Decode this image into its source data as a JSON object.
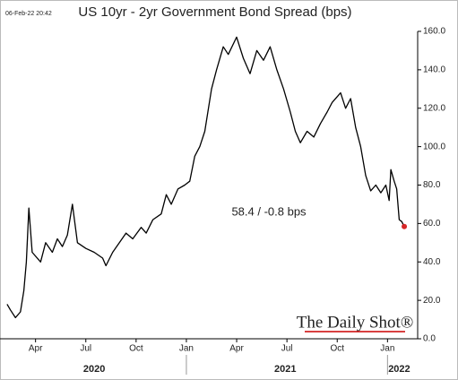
{
  "chart_data": {
    "type": "line",
    "title": "US 10yr - 2yr Government Bond Spread (bps)",
    "timestamp": "06-Feb-22 20:42",
    "annotation": "58.4  /  -0.8 bps",
    "source": "The Daily Shot®",
    "xlim": [
      1.2,
      25.8
    ],
    "xticks": [
      {
        "value": 3,
        "label": "Apr"
      },
      {
        "value": 6,
        "label": "Jul"
      },
      {
        "value": 9,
        "label": "Oct"
      },
      {
        "value": 12,
        "label": "Jan"
      },
      {
        "value": 15,
        "label": "Apr"
      },
      {
        "value": 18,
        "label": "Jul"
      },
      {
        "value": 21,
        "label": "Oct"
      },
      {
        "value": 24,
        "label": "Jan"
      }
    ],
    "years": [
      {
        "value": 6.5,
        "label": "2020"
      },
      {
        "value": 17.9,
        "label": "2021"
      },
      {
        "value": 24.7,
        "label": "2022"
      }
    ],
    "year_starts": [
      12,
      24
    ],
    "ylim": [
      0,
      160
    ],
    "yticks": [
      {
        "value": 0,
        "label": "0.0"
      },
      {
        "value": 20,
        "label": "20.0"
      },
      {
        "value": 40,
        "label": "40.0"
      },
      {
        "value": 60,
        "label": "60.0"
      },
      {
        "value": 80,
        "label": "80.0"
      },
      {
        "value": 100,
        "label": "100.0"
      },
      {
        "value": 120,
        "label": "120.0"
      },
      {
        "value": 140,
        "label": "140.0"
      },
      {
        "value": 160,
        "label": "160.0"
      }
    ],
    "series": [
      {
        "name": "US 10yr - 2yr spread",
        "color": "#000000",
        "last_color": "#d62728",
        "x": [
          1.3,
          1.5,
          1.8,
          2.1,
          2.3,
          2.45,
          2.6,
          2.8,
          3.3,
          3.6,
          4.0,
          4.3,
          4.6,
          4.9,
          5.2,
          5.5,
          6.0,
          6.5,
          7.0,
          7.2,
          7.6,
          8.0,
          8.4,
          8.8,
          9.3,
          9.6,
          10.0,
          10.5,
          10.8,
          11.1,
          11.5,
          11.9,
          12.2,
          12.5,
          12.8,
          13.1,
          13.5,
          13.8,
          14.2,
          14.5,
          15.0,
          15.4,
          15.8,
          16.2,
          16.6,
          17.0,
          17.4,
          17.8,
          18.2,
          18.5,
          18.8,
          19.2,
          19.6,
          20.0,
          20.4,
          20.7,
          21.2,
          21.5,
          21.8,
          22.1,
          22.4,
          22.7,
          23.0,
          23.3,
          23.6,
          23.9,
          24.1,
          24.2,
          24.4,
          24.55,
          24.7,
          24.85,
          25.0
        ],
        "values": [
          18,
          15,
          11,
          14,
          25,
          40,
          68,
          45,
          40,
          50,
          45,
          52,
          48,
          54,
          70,
          50,
          47,
          45,
          42,
          38,
          45,
          50,
          55,
          52,
          58,
          55,
          62,
          65,
          75,
          70,
          78,
          80,
          82,
          95,
          100,
          108,
          130,
          140,
          152,
          148,
          157,
          146,
          138,
          150,
          145,
          152,
          140,
          130,
          118,
          108,
          102,
          108,
          105,
          112,
          118,
          123,
          128,
          120,
          125,
          110,
          100,
          85,
          77,
          80,
          76,
          80,
          72,
          88,
          82,
          78,
          62,
          61,
          58.4
        ]
      }
    ]
  }
}
